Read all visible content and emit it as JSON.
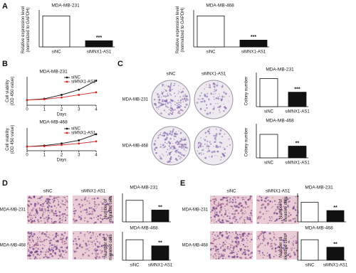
{
  "panel_labels": [
    "A",
    "B",
    "C",
    "D",
    "E"
  ],
  "image_panels": [
    {
      "col_labels": [
        "siNC",
        "siMNX1-AS1"
      ],
      "row_labels": [
        "MDA-MB-231",
        "MDA-MB-468"
      ]
    },
    {
      "col_labels": [
        "siNC",
        "siMNX1-AS1"
      ],
      "row_labels": [
        "MDA-MB-231",
        "MDA-MB-468"
      ]
    },
    {
      "col_labels": [
        "siNC",
        "siMNX1-AS1"
      ],
      "row_labels": [
        "MDA-MB-231",
        "MDA-MB-468"
      ]
    }
  ],
  "chart_data": [
    {
      "type": "bar",
      "title": "MDA-MB-231",
      "ylabel": [
        "Relative expression level",
        "(normalized to GAPDH)"
      ],
      "categories": [
        "siNC",
        "siMNX1-AS1"
      ],
      "values": [
        1.0,
        0.2
      ],
      "colors": [
        "#ffffff",
        "#111111"
      ],
      "ylim": [
        0,
        1.1
      ],
      "sig": "***"
    },
    {
      "type": "bar",
      "title": "MDA-MB-468",
      "ylabel": [
        "Relative expression level",
        "(normalized to GAPDH)"
      ],
      "categories": [
        "siNC",
        "siMNX1-AS1"
      ],
      "values": [
        1.0,
        0.22
      ],
      "colors": [
        "#ffffff",
        "#111111"
      ],
      "ylim": [
        0,
        1.1
      ],
      "sig": "***"
    },
    {
      "type": "line",
      "title": "MDA-MB-231",
      "xlabel": "Days",
      "ylabel": [
        "Cell viability",
        "(OD 450 value)"
      ],
      "x": [
        0,
        1,
        2,
        3,
        4
      ],
      "xlim": [
        0,
        4
      ],
      "xticks": [
        0,
        1,
        2,
        3,
        4
      ],
      "ylim": [
        0,
        1.1
      ],
      "series": [
        {
          "name": "siNC",
          "color": "#111111",
          "values": [
            0.2,
            0.25,
            0.4,
            0.6,
            0.95
          ]
        },
        {
          "name": "siMNX1-AS1",
          "color": "#d62728",
          "values": [
            0.2,
            0.23,
            0.3,
            0.4,
            0.5
          ]
        }
      ]
    },
    {
      "type": "line",
      "title": "MDA-MB-468",
      "xlabel": "Days",
      "ylabel": [
        "Cell viability",
        "(OD 450 value)"
      ],
      "x": [
        0,
        1,
        2,
        3,
        4
      ],
      "xlim": [
        0,
        4
      ],
      "xticks": [
        0,
        1,
        2,
        3,
        4
      ],
      "ylim": [
        0,
        1.1
      ],
      "series": [
        {
          "name": "siNC",
          "color": "#111111",
          "values": [
            0.2,
            0.25,
            0.35,
            0.5,
            0.8
          ]
        },
        {
          "name": "siMNX1-AS1",
          "color": "#d62728",
          "values": [
            0.2,
            0.22,
            0.28,
            0.35,
            0.45
          ]
        }
      ]
    },
    {
      "type": "bar",
      "title": "MDA-MB-231",
      "ylabel": [
        "Colony number"
      ],
      "categories": [
        "siNC",
        "siMNX1-AS1"
      ],
      "values": [
        720,
        370
      ],
      "colors": [
        "#ffffff",
        "#111111"
      ],
      "ylim": [
        0,
        800
      ],
      "sig": "***"
    },
    {
      "type": "bar",
      "title": "MDA-MB-468",
      "ylabel": [
        "Colony number"
      ],
      "categories": [
        "siNC",
        "siMNX1-AS1"
      ],
      "values": [
        600,
        300
      ],
      "colors": [
        "#ffffff",
        "#111111"
      ],
      "ylim": [
        0,
        800
      ],
      "sig": "**"
    },
    {
      "type": "bar",
      "title": "MDA-MB-231",
      "ylabel": [
        "Number of",
        "migrated cells"
      ],
      "values": [
        420,
        230
      ],
      "colors": [
        "#ffffff",
        "#111111"
      ],
      "ylim": [
        0,
        500
      ],
      "sig": "**"
    },
    {
      "type": "bar",
      "title": "MDA-MB-468",
      "ylabel": [
        "Number of",
        "migrated cells"
      ],
      "categories": [
        "siNC",
        "siMNX1-AS1"
      ],
      "values": [
        400,
        280
      ],
      "colors": [
        "#ffffff",
        "#111111"
      ],
      "ylim": [
        0,
        500
      ],
      "sig": "**"
    },
    {
      "type": "bar",
      "title": "MDA-MB-231",
      "ylabel": [
        "Number of",
        "invasive cells"
      ],
      "values": [
        380,
        220
      ],
      "colors": [
        "#ffffff",
        "#111111"
      ],
      "ylim": [
        0,
        500
      ],
      "sig": "**"
    },
    {
      "type": "bar",
      "title": "MDA-MB-468",
      "ylabel": [
        "Number of",
        "invasive cells"
      ],
      "categories": [
        "siNC",
        "siMNX1-AS1"
      ],
      "values": [
        520,
        330
      ],
      "colors": [
        "#ffffff",
        "#111111"
      ],
      "ylim": [
        0,
        650
      ],
      "sig": "**"
    }
  ]
}
